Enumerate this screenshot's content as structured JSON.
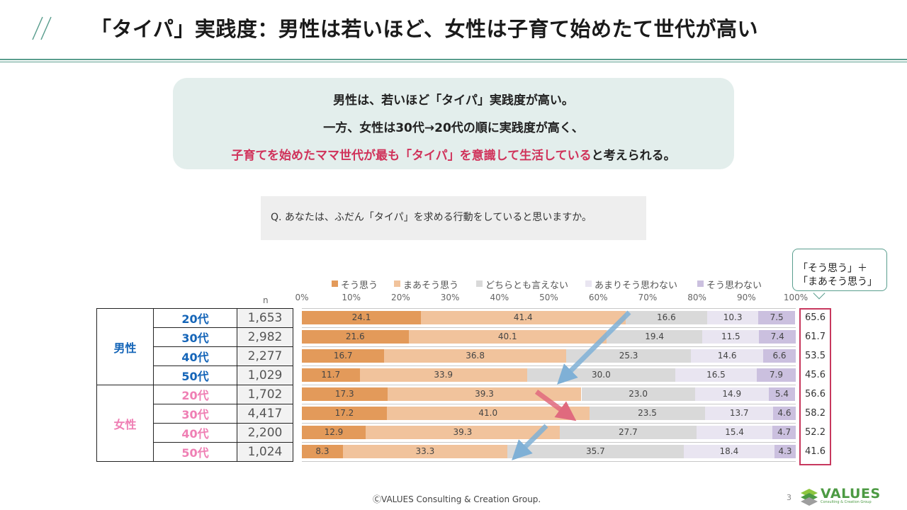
{
  "title": "「タイパ」実践度：男性は若いほど、女性は子育て始めたて世代が高い",
  "summary": {
    "line1": "男性は、若いほど「タイパ」実践度が高い。",
    "line2": "一方、女性は30代→20代の順に実践度が高く、",
    "line3_highlight": "子育てを始めたママ世代が最も「タイパ」を意識して生活している",
    "line3_rest": "と考えられる。"
  },
  "question": "Q. あなたは、ふだん「タイパ」を求める行動をしていると思いますか。",
  "callout": {
    "line1": "「そう思う」＋",
    "line2": "「まあそう思う」"
  },
  "colors": {
    "accent_teal": "#5a9e8e",
    "highlight_red": "#d0325a",
    "male": "#1565b8",
    "female": "#ef7fb4",
    "arrow_blue": "#7fb0d6",
    "arrow_red": "#e06a7e"
  },
  "footer": {
    "copyright": "ⒸVALUES  Consulting & Creation Group.",
    "page": "3",
    "logo_text": "VALUES",
    "logo_sub": "Consulting & Creation Group"
  },
  "chart_data": {
    "type": "bar",
    "orientation": "horizontal",
    "stacked": true,
    "xlim": [
      0,
      100
    ],
    "xticks": [
      "0%",
      "10%",
      "20%",
      "30%",
      "40%",
      "50%",
      "60%",
      "70%",
      "80%",
      "90%",
      "100%"
    ],
    "n_label": "n",
    "series": [
      {
        "name": "そう思う",
        "color": "#e39a5a",
        "values": [
          24.1,
          21.6,
          16.7,
          11.7,
          17.3,
          17.2,
          12.9,
          8.3
        ]
      },
      {
        "name": "まあそう思う",
        "color": "#f1c39c",
        "values": [
          41.4,
          40.1,
          36.8,
          33.9,
          39.3,
          41.0,
          39.3,
          33.3
        ]
      },
      {
        "name": "どちらとも言えない",
        "color": "#d9d9d9",
        "values": [
          16.6,
          19.4,
          25.3,
          30.0,
          23.0,
          23.5,
          27.7,
          35.7
        ]
      },
      {
        "name": "あまりそう思わない",
        "color": "#e9e5f1",
        "values": [
          10.3,
          11.5,
          14.6,
          16.5,
          14.9,
          13.7,
          15.4,
          18.4
        ]
      },
      {
        "name": "そう思わない",
        "color": "#cbc0df",
        "values": [
          7.5,
          7.4,
          6.6,
          7.9,
          5.4,
          4.6,
          4.7,
          4.3
        ]
      }
    ],
    "groups": [
      {
        "label": "男性",
        "rows": [
          {
            "age": "20代",
            "n": "1,653",
            "top2": "65.6"
          },
          {
            "age": "30代",
            "n": "2,982",
            "top2": "61.7"
          },
          {
            "age": "40代",
            "n": "2,277",
            "top2": "53.5"
          },
          {
            "age": "50代",
            "n": "1,029",
            "top2": "45.6"
          }
        ]
      },
      {
        "label": "女性",
        "rows": [
          {
            "age": "20代",
            "n": "1,702",
            "top2": "56.6"
          },
          {
            "age": "30代",
            "n": "4,417",
            "top2": "58.2"
          },
          {
            "age": "40代",
            "n": "2,200",
            "top2": "52.2"
          },
          {
            "age": "50代",
            "n": "1,024",
            "top2": "41.6"
          }
        ]
      }
    ]
  }
}
